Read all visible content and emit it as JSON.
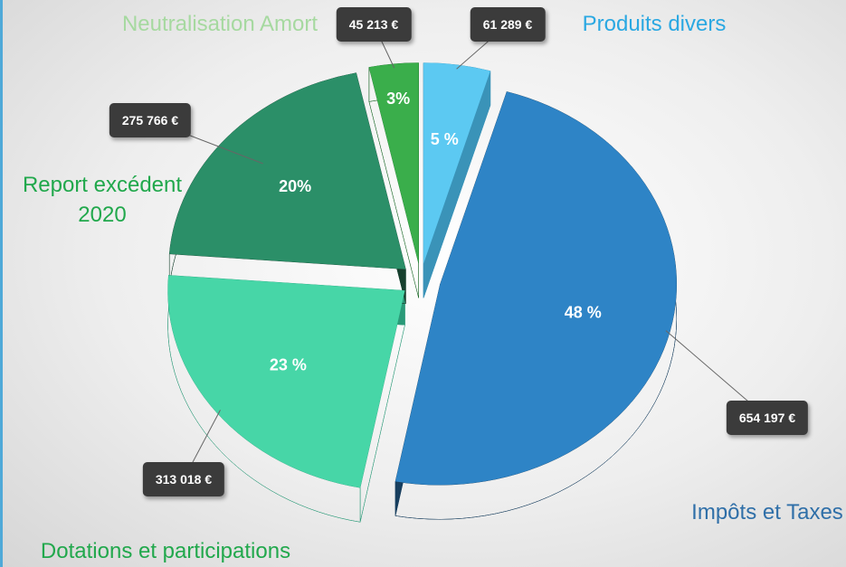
{
  "chart_data": {
    "type": "pie",
    "categories": [
      "Produits divers",
      "Impôts et Taxes",
      "Dotations et participations",
      "Report excédent 2020",
      "Neutralisation Amort"
    ],
    "values": [
      61289,
      654197,
      313018,
      275766,
      45213
    ],
    "value_labels": [
      "61 289 €",
      "654 197 €",
      "313 018 €",
      "275 766 €",
      "45 213 €"
    ],
    "percent_labels": [
      "5 %",
      "48 %",
      "23 %",
      "20%",
      "3%"
    ],
    "colors": [
      "#5cc9f2",
      "#2e84c6",
      "#47d6a7",
      "#2b8f68",
      "#3aae4b"
    ],
    "side_colors": [
      "#3a93b8",
      "#173e5e",
      "#2a9a78",
      "#17402e",
      "#1d6a2a"
    ],
    "label_colors": [
      "#2aa8e2",
      "#2f6fa8",
      "#21a84c",
      "#21a84c",
      "#a6d9a0"
    ]
  }
}
